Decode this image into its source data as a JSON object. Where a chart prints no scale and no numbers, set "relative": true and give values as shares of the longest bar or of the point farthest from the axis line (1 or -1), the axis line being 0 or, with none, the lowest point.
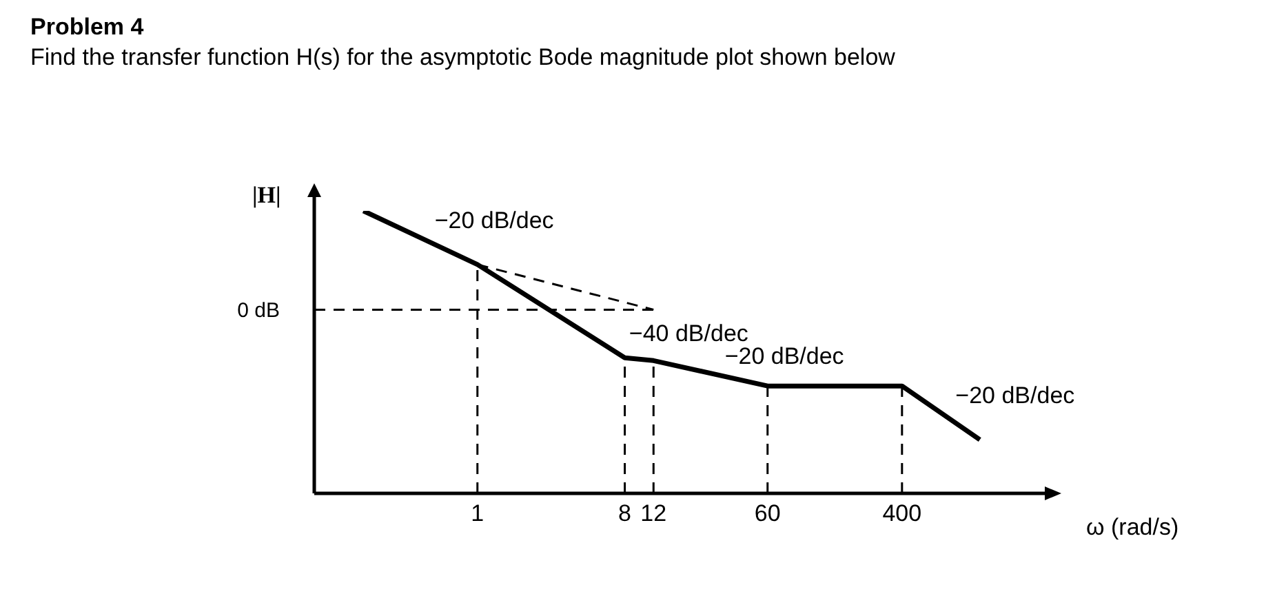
{
  "chart_data": {
    "type": "line",
    "title": "Problem 4",
    "subtitle": "Find the transfer function H(s) for the asymptotic Bode magnitude plot shown below",
    "xlabel": "ω (rad/s)",
    "ylabel": "|H|",
    "relative": true,
    "log": "x",
    "xlim": [
      0.1,
      3000
    ],
    "xticks": [
      1,
      8,
      12,
      60,
      400
    ],
    "marker": "none",
    "series": [
      {
        "color": "#000000",
        "line_style": "solid",
        "x": [
          0.2,
          1,
          8,
          12,
          60,
          400,
          1200
        ],
        "values": [
          1,
          0.81,
          0.48,
          0.47,
          0.38,
          0.38,
          0.19
        ]
      },
      {
        "color": "#000000",
        "line_style": "dashed",
        "x": [
          1,
          12
        ],
        "values": [
          0.81,
          0.65
        ]
      }
    ],
    "ref_lines": [
      {
        "axis": "y",
        "value": 0.65,
        "label": "0 dB",
        "line_style": "dashed"
      },
      {
        "axis": "x",
        "value": 1,
        "line_style": "dashed"
      },
      {
        "axis": "x",
        "value": 8,
        "line_style": "dashed"
      },
      {
        "axis": "x",
        "value": 12,
        "line_style": "dashed"
      },
      {
        "axis": "x",
        "value": 60,
        "line_style": "dashed"
      },
      {
        "axis": "x",
        "value": 400,
        "line_style": "dashed"
      }
    ],
    "annotations": [
      {
        "text": "−20 dB/dec",
        "x": 0.45,
        "y": 0.9
      },
      {
        "text": "−40 dB/dec",
        "x": 7,
        "y": 0.5
      },
      {
        "text": "−20 dB/dec",
        "x": 27,
        "y": 0.42
      },
      {
        "text": "−20 dB/dec",
        "x": 700,
        "y": 0.28
      }
    ]
  }
}
